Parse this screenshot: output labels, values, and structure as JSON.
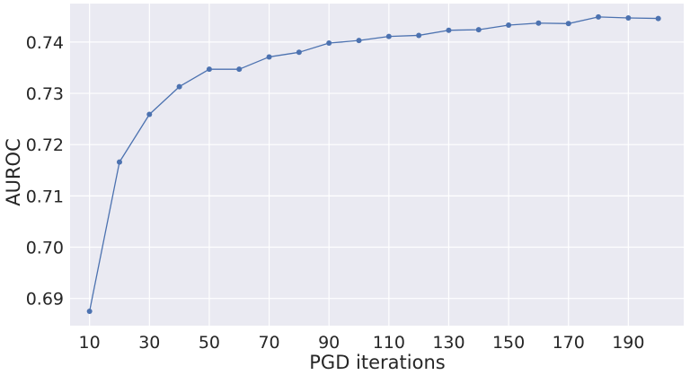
{
  "chart_data": {
    "type": "line",
    "xlabel": "PGD iterations",
    "ylabel": "AUROC",
    "xlim": [
      3.5,
      208.5
    ],
    "ylim": [
      0.6847,
      0.7475
    ],
    "xticks": [
      10,
      30,
      50,
      70,
      90,
      110,
      130,
      150,
      170,
      190
    ],
    "yticks": [
      0.69,
      0.7,
      0.71,
      0.72,
      0.73,
      0.74
    ],
    "ytick_labels": [
      "0.69",
      "0.70",
      "0.71",
      "0.72",
      "0.73",
      "0.74"
    ],
    "grid": true,
    "background": "#eaeaf2",
    "series": [
      {
        "color": "#4c72b0",
        "x": [
          10,
          20,
          30,
          40,
          50,
          60,
          70,
          80,
          90,
          100,
          110,
          120,
          130,
          140,
          150,
          160,
          170,
          180,
          190,
          200
        ],
        "y": [
          0.6875,
          0.7166,
          0.7259,
          0.7313,
          0.7347,
          0.7347,
          0.7371,
          0.738,
          0.7398,
          0.7403,
          0.7411,
          0.7413,
          0.7423,
          0.7424,
          0.7433,
          0.7437,
          0.7436,
          0.7449,
          0.7447,
          0.7446
        ]
      }
    ]
  }
}
